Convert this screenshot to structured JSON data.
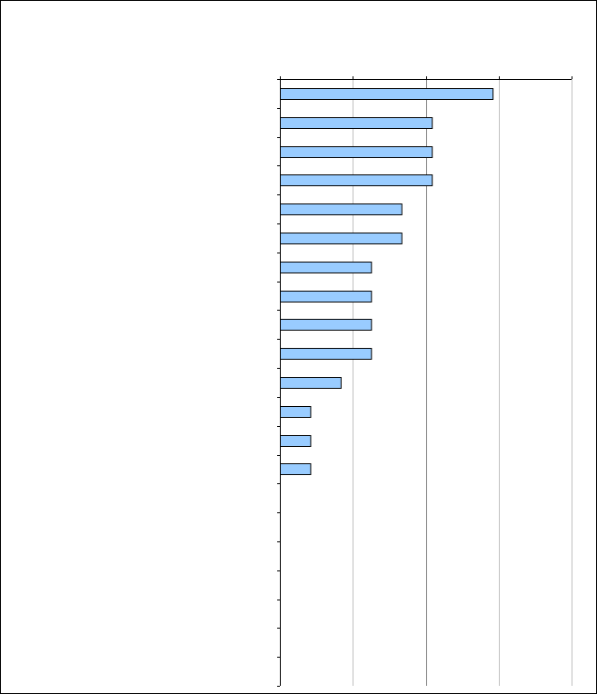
{
  "chart_data": {
    "type": "bar",
    "orientation": "horizontal",
    "title": "",
    "xlabel": "",
    "ylabel": "",
    "categories": [
      "",
      "",
      "",
      "",
      "",
      "",
      "",
      "",
      "",
      "",
      "",
      "",
      "",
      "",
      "",
      "",
      "",
      "",
      "",
      "",
      ""
    ],
    "values": [
      7,
      5,
      5,
      5,
      4,
      4,
      3,
      3,
      3,
      3,
      2,
      1,
      1,
      1,
      0,
      0,
      0,
      0,
      0,
      0,
      0
    ],
    "xlim": [
      0,
      9.6
    ],
    "x_gridlines": [
      2.4,
      4.8,
      7.2,
      9.6
    ],
    "grid": true,
    "legend": "none",
    "colors": {
      "bar_fill": "#99ccff",
      "bar_stroke": "#000000",
      "grid_light": "#c0c0c0",
      "grid_dark": "#808080",
      "axis": "#000000"
    }
  }
}
